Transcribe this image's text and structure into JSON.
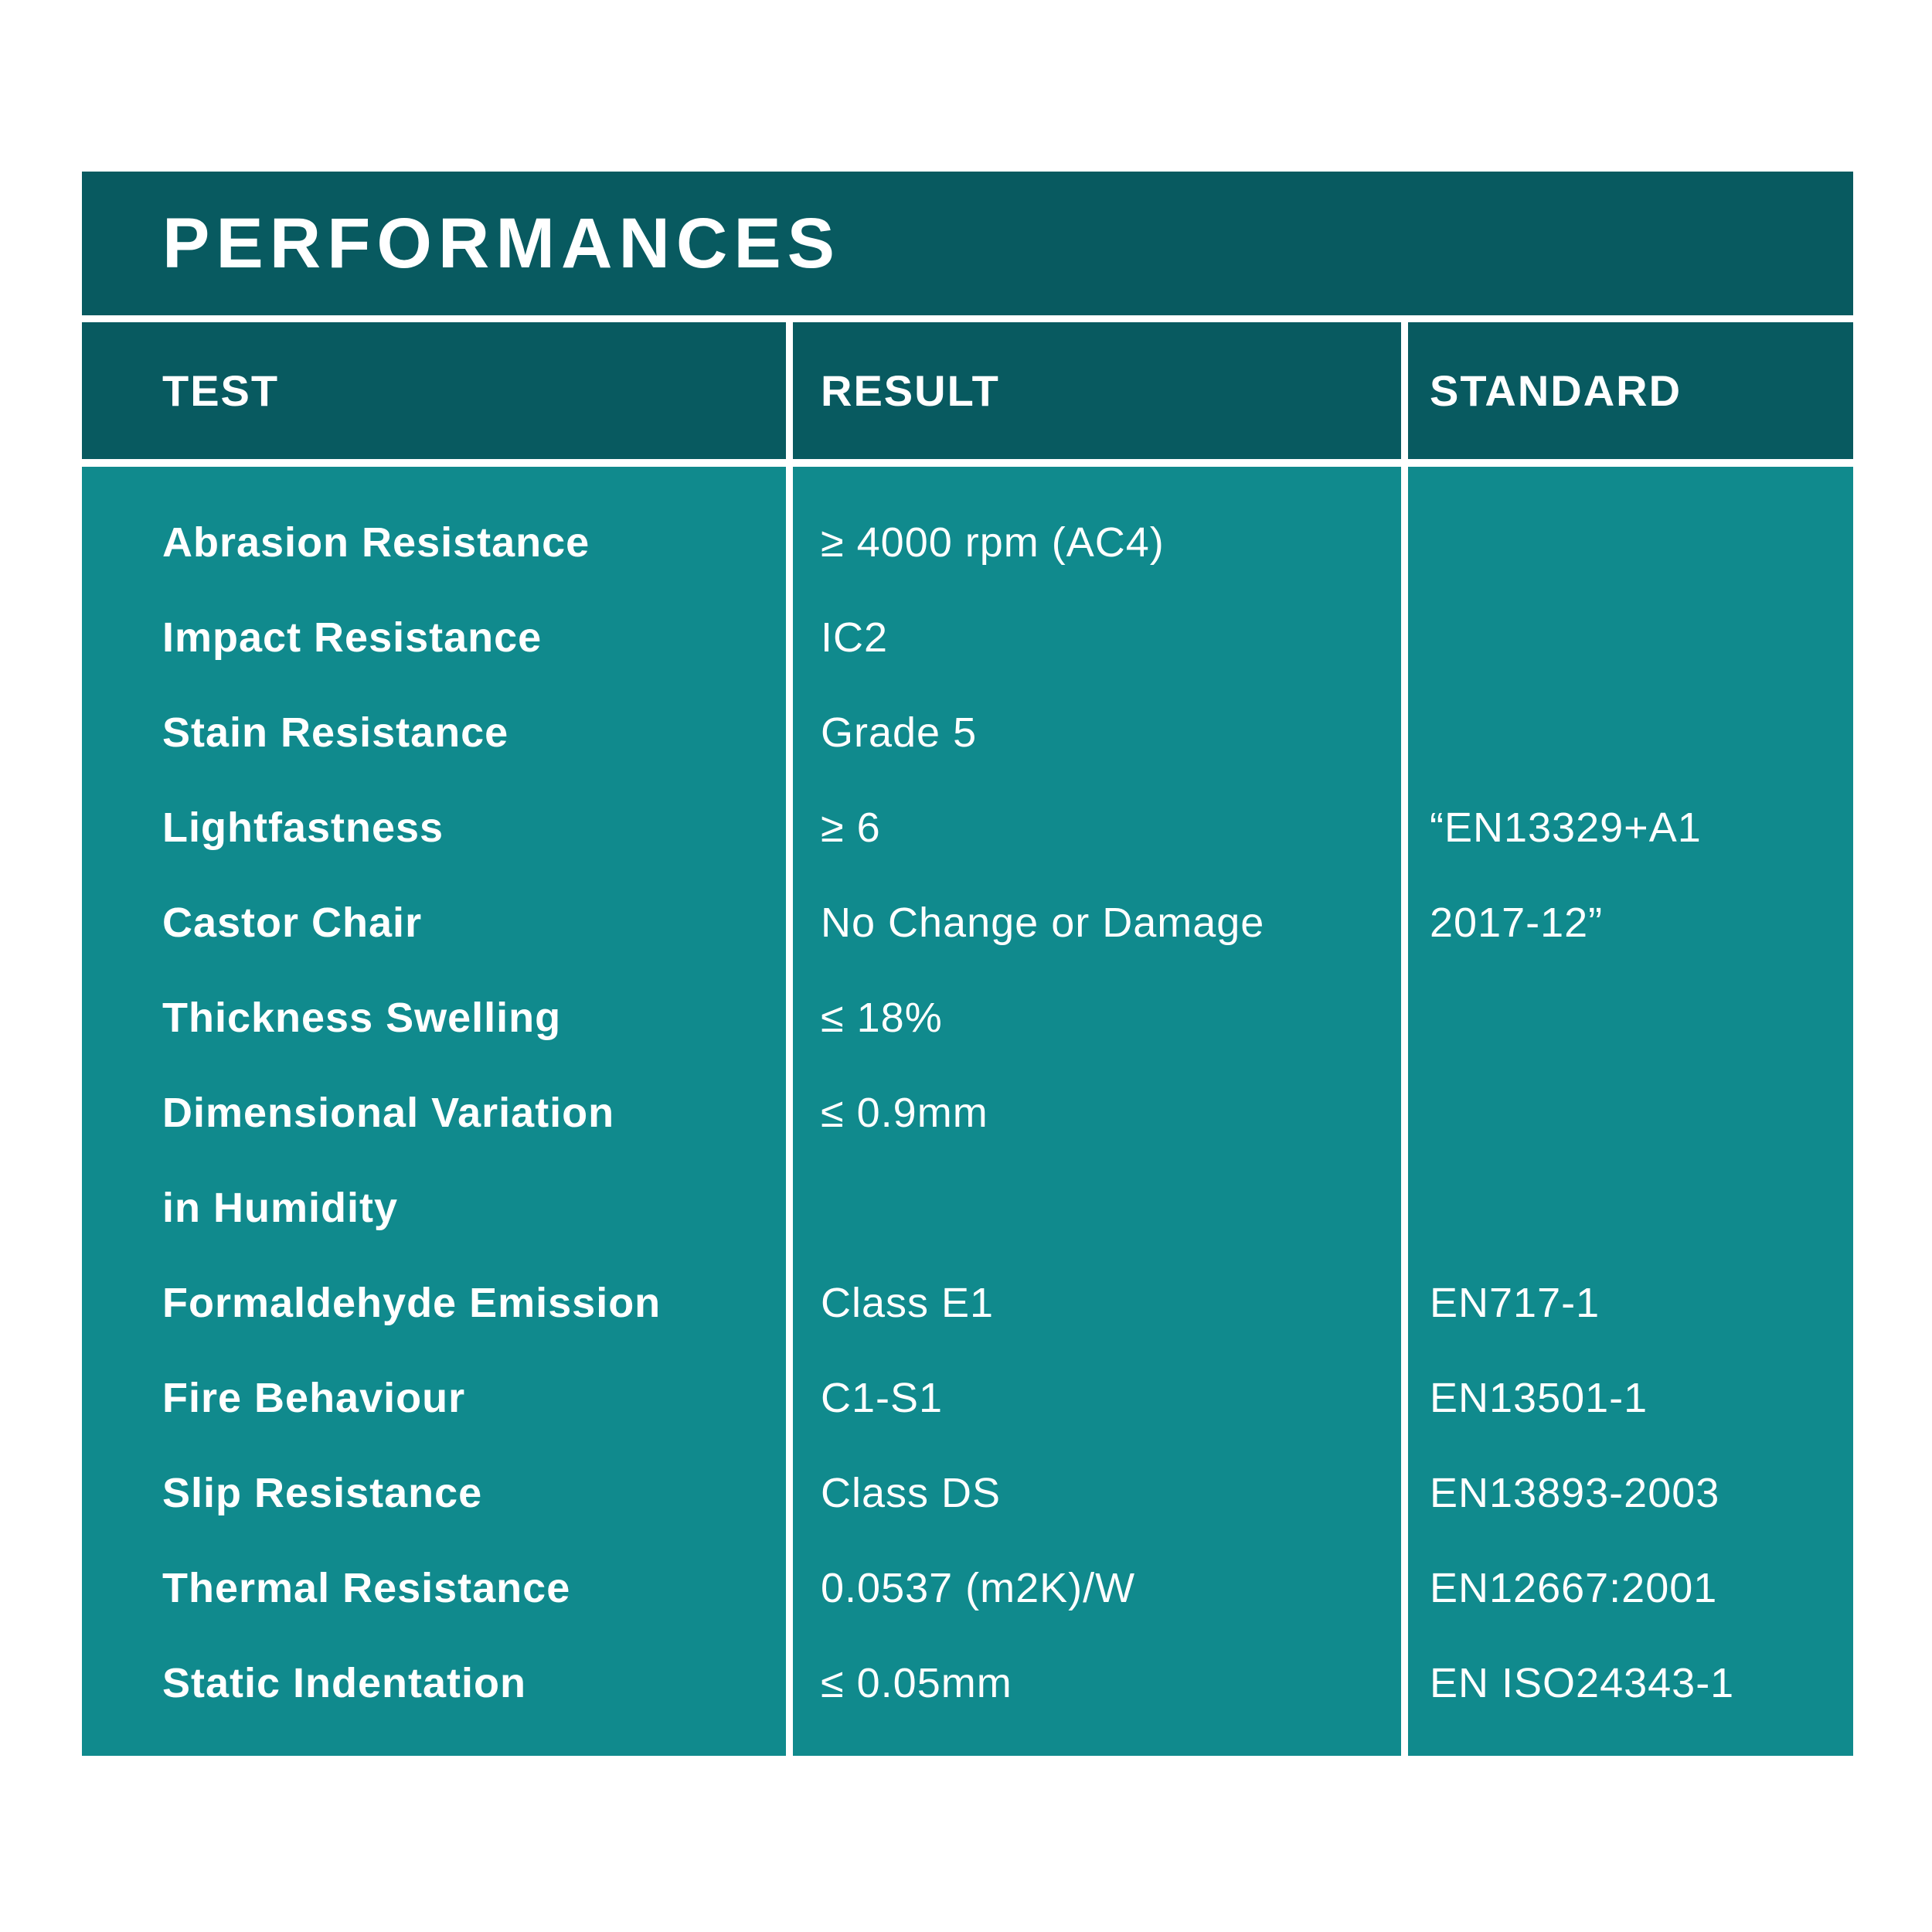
{
  "title": "PERFORMANCES",
  "columns": {
    "test": "TEST",
    "result": "RESULT",
    "standard": "STANDARD"
  },
  "rows": [
    {
      "test": "Abrasion Resistance",
      "result": "≥ 4000 rpm (AC4)",
      "standard": ""
    },
    {
      "test": "Impact Resistance",
      "result": "IC2",
      "standard": ""
    },
    {
      "test": "Stain Resistance",
      "result": "Grade 5",
      "standard": ""
    },
    {
      "test": "Lightfastness",
      "result": "≥ 6",
      "standard": "“EN13329+A1"
    },
    {
      "test": "Castor Chair",
      "result": "No Change or Damage",
      "standard": "2017-12”"
    },
    {
      "test": "Thickness Swelling",
      "result": "≤ 18%",
      "standard": ""
    },
    {
      "test": "Dimensional Variation",
      "result": "≤ 0.9mm",
      "standard": ""
    },
    {
      "test": "in Humidity",
      "result": "",
      "standard": ""
    },
    {
      "test": "Formaldehyde Emission",
      "result": "Class E1",
      "standard": "EN717-1"
    },
    {
      "test": "Fire Behaviour",
      "result": "C1-S1",
      "standard": "EN13501-1"
    },
    {
      "test": "Slip Resistance",
      "result": "Class DS",
      "standard": "EN13893-2003"
    },
    {
      "test": "Thermal Resistance",
      "result": "0.0537 (m2K)/W",
      "standard": "EN12667:2001"
    },
    {
      "test": "Static Indentation",
      "result": "≤ 0.05mm",
      "standard": "EN ISO24343-1"
    }
  ],
  "colors": {
    "header_bg": "#085A60",
    "body_bg": "#108A8D",
    "text": "#FFFFFF",
    "page_bg": "#FFFFFF"
  }
}
